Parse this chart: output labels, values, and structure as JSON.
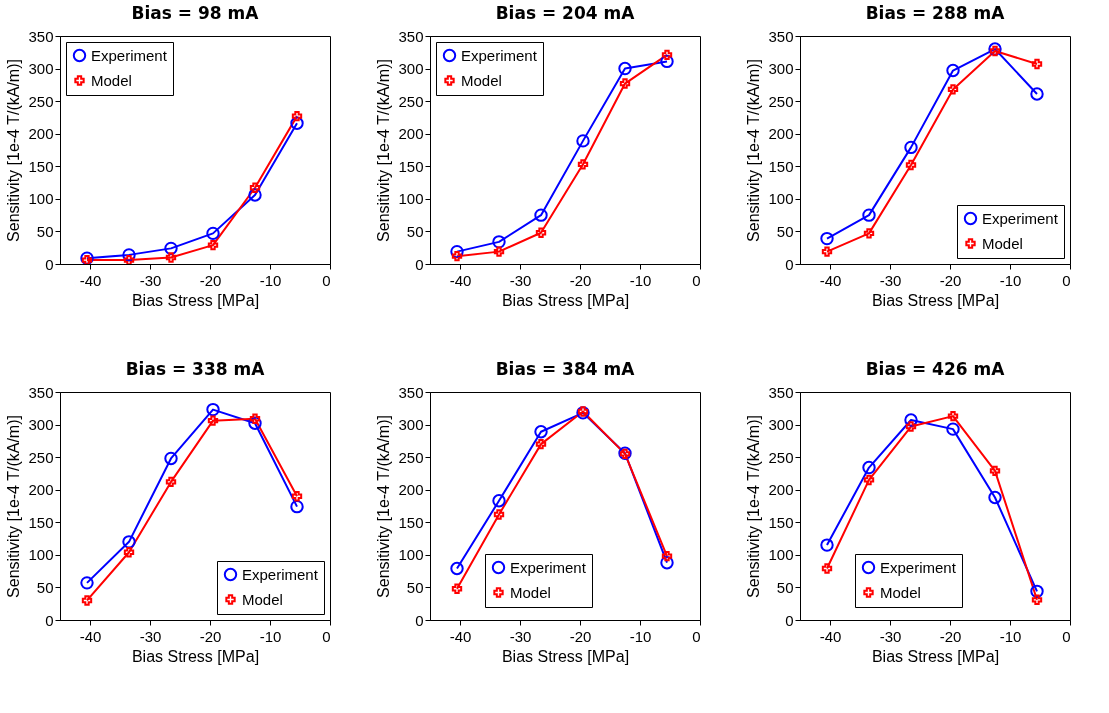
{
  "chart_data": [
    {
      "type": "line",
      "title": "Bias = 98 mA",
      "xlabel": "Bias Stress [MPa]",
      "ylabel": "Sensitivity [1e-4 T/(kA/m)]",
      "x": [
        -40.5,
        -33.5,
        -26.5,
        -19.5,
        -12.5,
        -5.5
      ],
      "xlim": [
        -45,
        0
      ],
      "xticks": [
        -40,
        -30,
        -20,
        -10,
        0
      ],
      "ylim": [
        0,
        350
      ],
      "yticks": [
        0,
        50,
        100,
        150,
        200,
        250,
        300,
        350
      ],
      "legend": "top left",
      "series": [
        {
          "name": "Experiment",
          "color": "#0000ff",
          "marker": "circle",
          "values": [
            9,
            14,
            24,
            47,
            106,
            216
          ]
        },
        {
          "name": "Model",
          "color": "#ff0000",
          "marker": "cross",
          "values": [
            6,
            6,
            10,
            29,
            117,
            227
          ]
        }
      ]
    },
    {
      "type": "line",
      "title": "Bias = 204 mA",
      "xlabel": "Bias Stress [MPa]",
      "ylabel": "Sensitivity [1e-4 T/(kA/m)]",
      "x": [
        -40.5,
        -33.5,
        -26.5,
        -19.5,
        -12.5,
        -5.5
      ],
      "xlim": [
        -45,
        0
      ],
      "xticks": [
        -40,
        -30,
        -20,
        -10,
        0
      ],
      "ylim": [
        0,
        350
      ],
      "yticks": [
        0,
        50,
        100,
        150,
        200,
        250,
        300,
        350
      ],
      "legend": "top left",
      "series": [
        {
          "name": "Experiment",
          "color": "#0000ff",
          "marker": "circle",
          "values": [
            19,
            34,
            75,
            189,
            300,
            311
          ]
        },
        {
          "name": "Model",
          "color": "#ff0000",
          "marker": "cross",
          "values": [
            12,
            19,
            48,
            153,
            277,
            321
          ]
        }
      ]
    },
    {
      "type": "line",
      "title": "Bias = 288 mA",
      "xlabel": "Bias Stress [MPa]",
      "ylabel": "Sensitivity [1e-4 T/(kA/m)]",
      "x": [
        -40.5,
        -33.5,
        -26.5,
        -19.5,
        -12.5,
        -5.5
      ],
      "xlim": [
        -45,
        0
      ],
      "xticks": [
        -40,
        -30,
        -20,
        -10,
        0
      ],
      "ylim": [
        0,
        350
      ],
      "yticks": [
        0,
        50,
        100,
        150,
        200,
        250,
        300,
        350
      ],
      "legend": "bottom right",
      "series": [
        {
          "name": "Experiment",
          "color": "#0000ff",
          "marker": "circle",
          "values": [
            39,
            75,
            179,
            297,
            330,
            261
          ]
        },
        {
          "name": "Model",
          "color": "#ff0000",
          "marker": "cross",
          "values": [
            19,
            47,
            152,
            268,
            327,
            307
          ]
        }
      ]
    },
    {
      "type": "line",
      "title": "Bias = 338 mA",
      "xlabel": "Bias Stress [MPa]",
      "ylabel": "Sensitivity [1e-4 T/(kA/m)]",
      "x": [
        -40.5,
        -33.5,
        -26.5,
        -19.5,
        -12.5,
        -5.5
      ],
      "xlim": [
        -45,
        0
      ],
      "xticks": [
        -40,
        -30,
        -20,
        -10,
        0
      ],
      "ylim": [
        0,
        350
      ],
      "yticks": [
        0,
        50,
        100,
        150,
        200,
        250,
        300,
        350
      ],
      "legend": "bottom right",
      "series": [
        {
          "name": "Experiment",
          "color": "#0000ff",
          "marker": "circle",
          "values": [
            57,
            120,
            248,
            323,
            302,
            174
          ]
        },
        {
          "name": "Model",
          "color": "#ff0000",
          "marker": "cross",
          "values": [
            30,
            104,
            212,
            306,
            309,
            190
          ]
        }
      ]
    },
    {
      "type": "line",
      "title": "Bias = 384 mA",
      "xlabel": "Bias Stress [MPa]",
      "ylabel": "Sensitivity [1e-4 T/(kA/m)]",
      "x": [
        -40.5,
        -33.5,
        -26.5,
        -19.5,
        -12.5,
        -5.5
      ],
      "xlim": [
        -45,
        0
      ],
      "xticks": [
        -40,
        -30,
        -20,
        -10,
        0
      ],
      "ylim": [
        0,
        350
      ],
      "yticks": [
        0,
        50,
        100,
        150,
        200,
        250,
        300,
        350
      ],
      "legend": "bottom",
      "series": [
        {
          "name": "Experiment",
          "color": "#0000ff",
          "marker": "circle",
          "values": [
            79,
            183,
            289,
            318,
            256,
            88
          ]
        },
        {
          "name": "Model",
          "color": "#ff0000",
          "marker": "cross",
          "values": [
            48,
            162,
            270,
            320,
            255,
            98
          ]
        }
      ]
    },
    {
      "type": "line",
      "title": "Bias = 426 mA",
      "xlabel": "Bias Stress [MPa]",
      "ylabel": "Sensitivity [1e-4 T/(kA/m)]",
      "x": [
        -40.5,
        -33.5,
        -26.5,
        -19.5,
        -12.5,
        -5.5
      ],
      "xlim": [
        -45,
        0
      ],
      "xticks": [
        -40,
        -30,
        -20,
        -10,
        0
      ],
      "ylim": [
        0,
        350
      ],
      "yticks": [
        0,
        50,
        100,
        150,
        200,
        250,
        300,
        350
      ],
      "legend": "bottom",
      "series": [
        {
          "name": "Experiment",
          "color": "#0000ff",
          "marker": "circle",
          "values": [
            115,
            234,
            307,
            293,
            188,
            44
          ]
        },
        {
          "name": "Model",
          "color": "#ff0000",
          "marker": "cross",
          "values": [
            79,
            215,
            297,
            313,
            229,
            31
          ]
        }
      ]
    }
  ]
}
